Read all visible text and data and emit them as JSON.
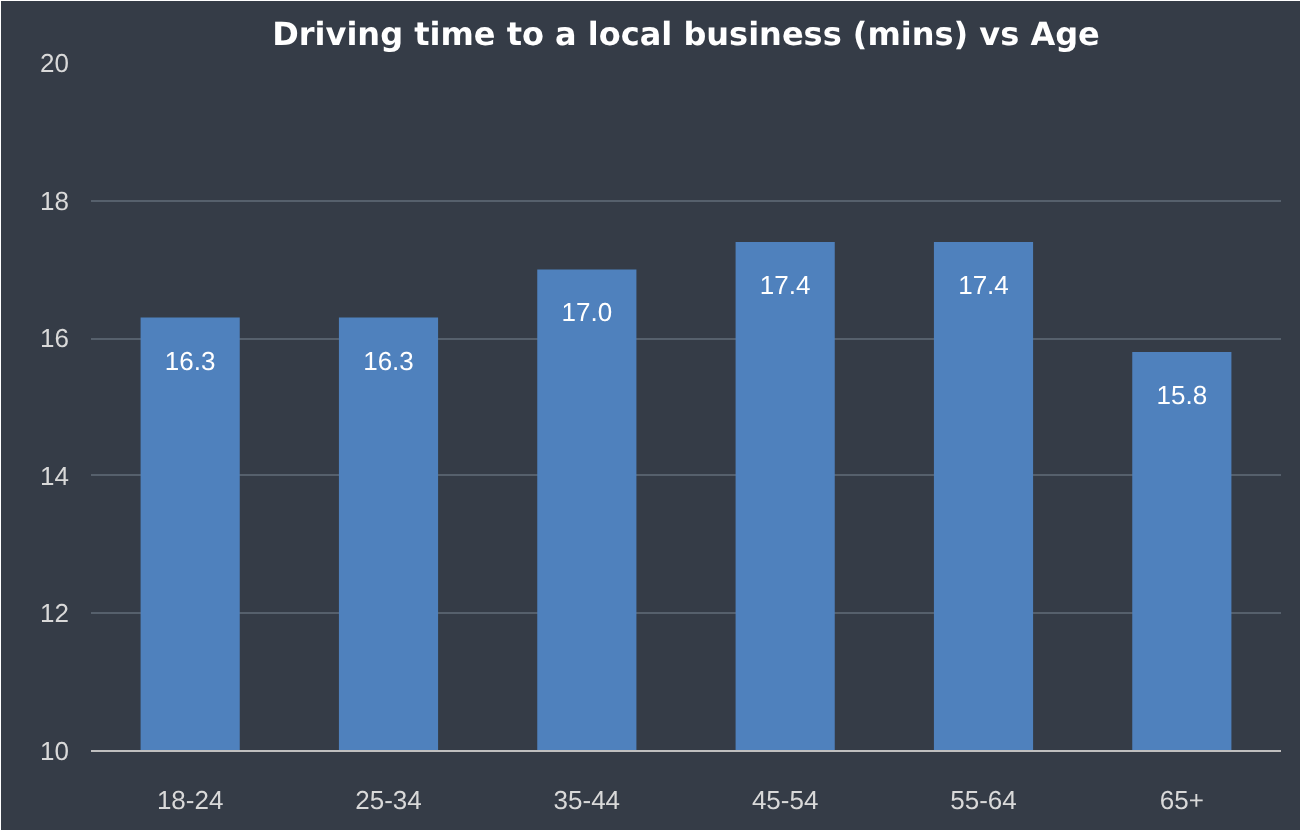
{
  "chart_data": {
    "type": "bar",
    "title": "Driving time to a local business (mins) vs Age",
    "categories": [
      "18-24",
      "25-34",
      "35-44",
      "45-54",
      "55-64",
      "65+"
    ],
    "values": [
      16.3,
      16.3,
      17.0,
      17.4,
      17.4,
      15.8
    ],
    "color": "#4f81bd",
    "ylim": [
      10,
      20
    ],
    "yticks": [
      10,
      12,
      14,
      16,
      18,
      20
    ],
    "grid": "y",
    "value_labels": [
      "16.3",
      "16.3",
      "17.0",
      "17.4",
      "17.4",
      "15.8"
    ]
  }
}
